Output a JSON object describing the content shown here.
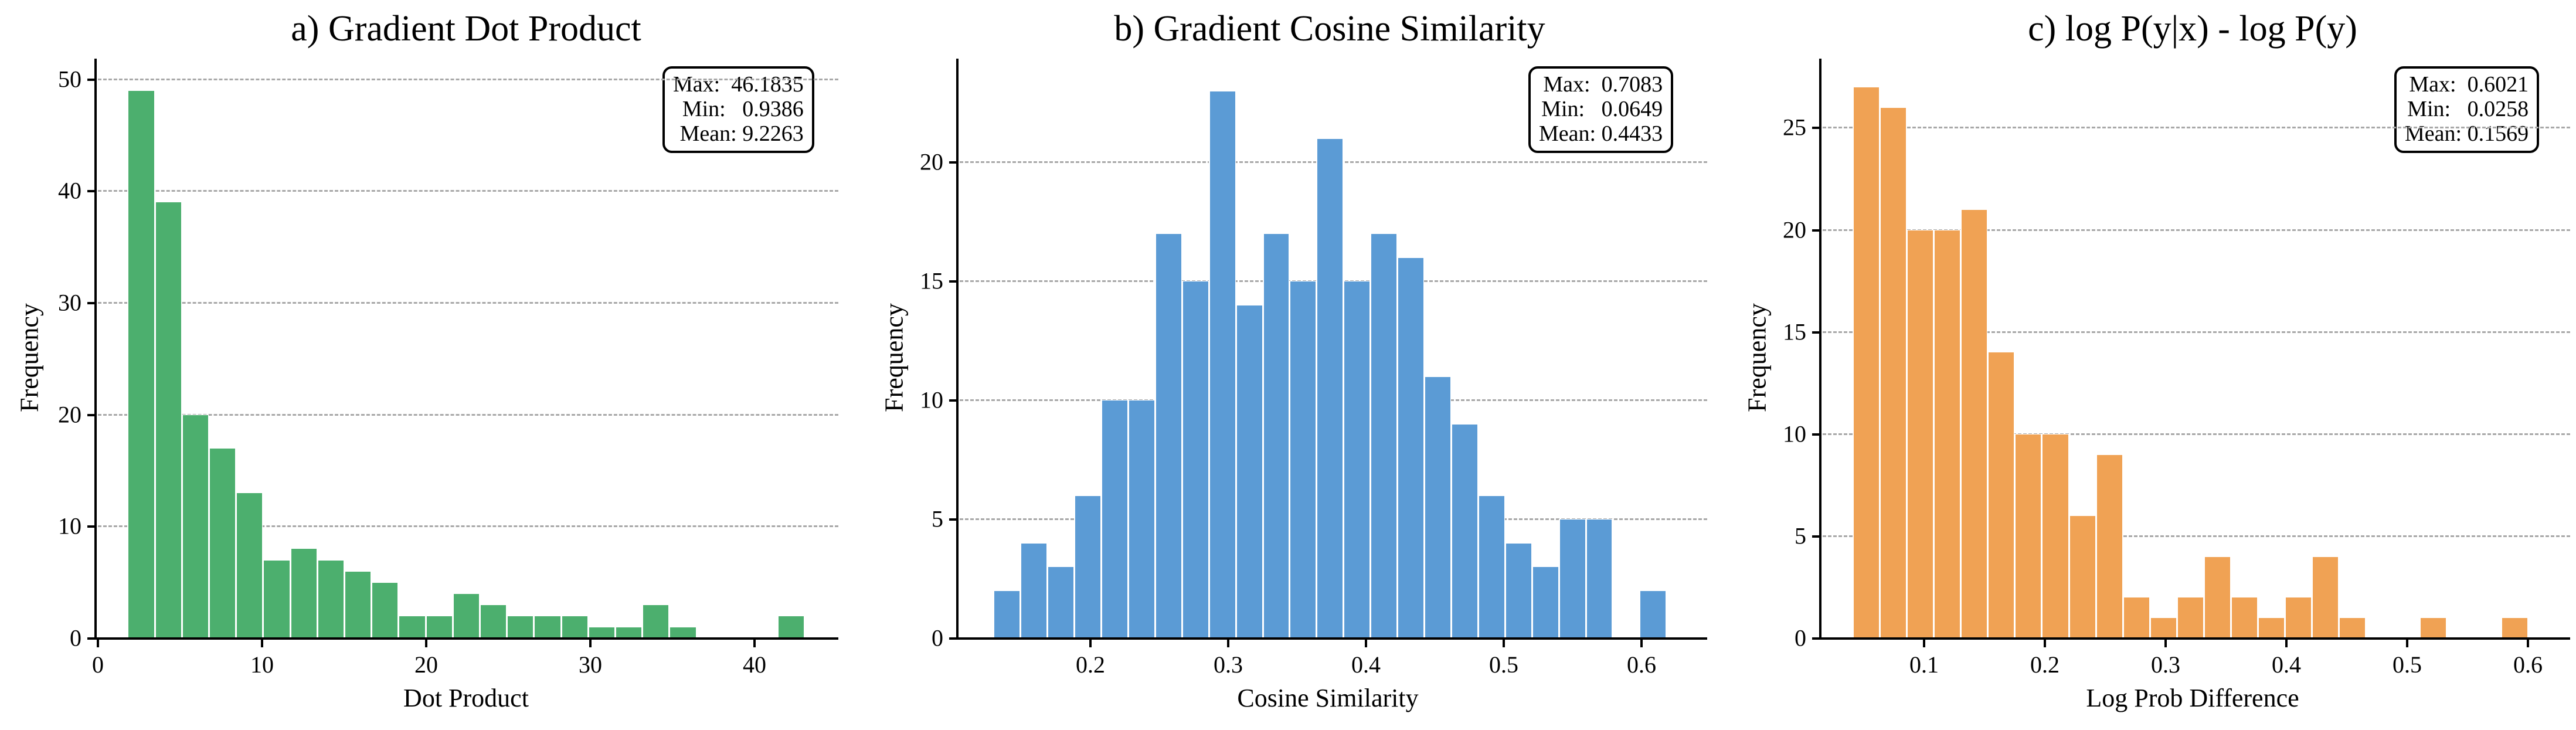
{
  "chart_data": [
    {
      "type": "bar",
      "title": "a) Gradient Dot Product",
      "xlabel": "Dot Product",
      "ylabel": "Frequency",
      "color": "#4caf6e",
      "xlim": [
        -0.5,
        45.5
      ],
      "ylim": [
        0,
        51.5
      ],
      "xticks": [
        0,
        10,
        20,
        30,
        40
      ],
      "yticks": [
        0,
        10,
        20,
        30,
        40,
        50
      ],
      "grid": "y-dashed",
      "bin_start": 1.8,
      "bin_width": 1.65,
      "values": [
        49,
        39,
        20,
        17,
        13,
        7,
        8,
        7,
        6,
        5,
        2,
        2,
        4,
        3,
        2,
        2,
        2,
        1,
        1,
        3,
        1,
        0,
        0,
        0,
        2
      ],
      "stats": {
        "max": "46.1835",
        "min": "0.9386",
        "mean": "9.2263"
      }
    },
    {
      "type": "bar",
      "title": "b) Gradient Cosine Similarity",
      "xlabel": "Cosine Similarity",
      "ylabel": "Frequency",
      "color": "#5b9bd5",
      "xlim": [
        0.105,
        0.64
      ],
      "ylim": [
        0,
        24.2
      ],
      "xticks": [
        0.2,
        0.3,
        0.4,
        0.5,
        0.6
      ],
      "yticks": [
        0,
        5,
        10,
        15,
        20
      ],
      "grid": "y-dashed",
      "bin_start": 0.1295,
      "bin_width": 0.01954,
      "values": [
        2,
        4,
        3,
        6,
        10,
        10,
        17,
        15,
        23,
        14,
        17,
        15,
        21,
        15,
        17,
        16,
        11,
        9,
        6,
        4,
        3,
        5,
        5,
        0,
        2
      ],
      "stats": {
        "max": "0.7083",
        "min": "0.0649",
        "mean": "0.4433"
      }
    },
    {
      "type": "bar",
      "title": "c) log P(y|x) - log P(y)",
      "xlabel": "Log Prob Difference",
      "ylabel": "Frequency",
      "color": "#f0a254",
      "xlim": [
        0.015,
        0.63
      ],
      "ylim": [
        0,
        28.2
      ],
      "xticks": [
        0.1,
        0.2,
        0.3,
        0.4,
        0.5,
        0.6
      ],
      "yticks": [
        0,
        5,
        10,
        15,
        20,
        25
      ],
      "grid": "y-dashed",
      "bin_start": 0.0408,
      "bin_width": 0.02236,
      "values": [
        27,
        26,
        20,
        20,
        21,
        14,
        10,
        10,
        6,
        9,
        2,
        1,
        2,
        4,
        2,
        1,
        2,
        4,
        1,
        0,
        0,
        1,
        0,
        0,
        1
      ],
      "stats": {
        "max": "0.6021",
        "min": "0.0258",
        "mean": "0.1569"
      }
    }
  ],
  "panels": [
    {
      "title": "a) Gradient Dot Product",
      "xlabel": "Dot Product",
      "ylabel": "Frequency",
      "stats_text": "Max:  46.1835\nMin:   0.9386\nMean: 9.2263"
    },
    {
      "title": "b) Gradient Cosine Similarity",
      "xlabel": "Cosine Similarity",
      "ylabel": "Frequency",
      "stats_text": "Max:  0.7083\nMin:   0.0649\nMean: 0.4433"
    },
    {
      "title": "c) log P(y|x) - log P(y)",
      "xlabel": "Log Prob Difference",
      "ylabel": "Frequency",
      "stats_text": "Max:  0.6021\nMin:   0.0258\nMean: 0.1569"
    }
  ]
}
